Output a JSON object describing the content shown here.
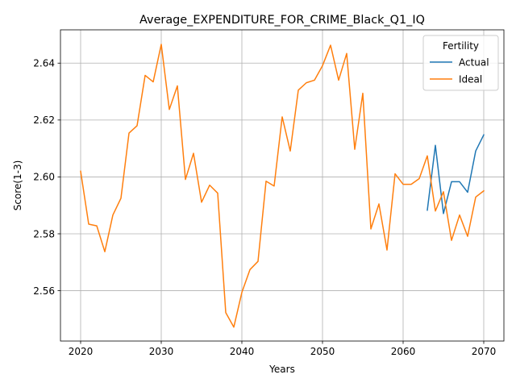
{
  "chart_data": {
    "type": "line",
    "title": "Average_EXPENDITURE_FOR_CRIME_Black_Q1_IQ",
    "xlabel": "Years",
    "ylabel": "Score(1-3)",
    "xlim": [
      2017.5,
      2072.5
    ],
    "ylim": [
      2.5423,
      2.6517
    ],
    "xticks": [
      2020,
      2030,
      2040,
      2050,
      2060,
      2070
    ],
    "yticks": [
      2.56,
      2.58,
      2.6,
      2.62,
      2.64
    ],
    "ytick_labels": [
      "2.56",
      "2.58",
      "2.60",
      "2.62",
      "2.64"
    ],
    "grid": true,
    "legend": {
      "title": "Fertility",
      "placement": "top-right"
    },
    "series": [
      {
        "name": "Actual",
        "color": "#1f77b4",
        "x": [
          2063,
          2064,
          2065,
          2066,
          2067,
          2068,
          2069,
          2070
        ],
        "y": [
          2.5883,
          2.6111,
          2.5871,
          2.5983,
          2.5983,
          2.5946,
          2.6091,
          2.6148
        ]
      },
      {
        "name": "Ideal",
        "color": "#ff7f0e",
        "x": [
          2020,
          2021,
          2022,
          2023,
          2024,
          2025,
          2026,
          2027,
          2028,
          2029,
          2030,
          2031,
          2032,
          2033,
          2034,
          2035,
          2036,
          2037,
          2038,
          2039,
          2040,
          2041,
          2042,
          2043,
          2044,
          2045,
          2046,
          2047,
          2048,
          2049,
          2050,
          2051,
          2052,
          2053,
          2054,
          2055,
          2056,
          2057,
          2058,
          2059,
          2060,
          2061,
          2062,
          2063,
          2064,
          2065,
          2066,
          2067,
          2068,
          2069,
          2070
        ],
        "y": [
          2.602,
          2.5834,
          2.5828,
          2.5737,
          2.5866,
          2.5925,
          2.6154,
          2.618,
          2.6357,
          2.6334,
          2.6466,
          2.6237,
          2.632,
          2.5991,
          2.6083,
          2.5911,
          2.5971,
          2.5943,
          2.5523,
          2.5472,
          2.5594,
          2.5674,
          2.5703,
          2.5985,
          2.5968,
          2.6211,
          2.6091,
          2.6305,
          2.6331,
          2.634,
          2.6391,
          2.6463,
          2.634,
          2.6434,
          2.6097,
          2.6294,
          2.5817,
          2.5905,
          2.5743,
          2.6011,
          2.5974,
          2.5974,
          2.5994,
          2.6074,
          2.588,
          2.5948,
          2.5777,
          2.5866,
          2.5791,
          2.5929,
          2.5951
        ]
      }
    ]
  }
}
